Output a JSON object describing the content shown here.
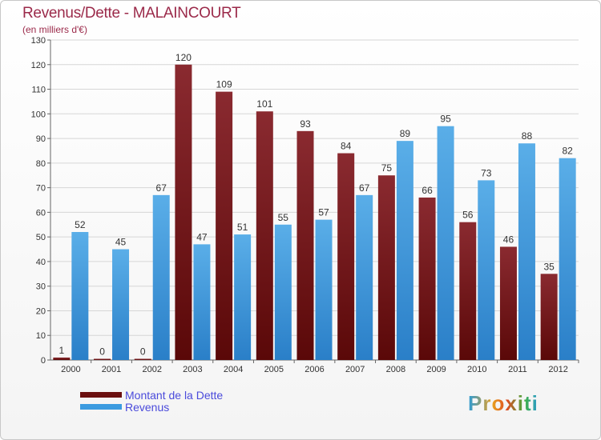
{
  "header": {
    "title": "Revenus/Dette - MALAINCOURT",
    "subtitle": "(en milliers d'€)"
  },
  "chart_data": {
    "type": "bar",
    "title": "Revenus/Dette - MALAINCOURT",
    "ylabel": "(en milliers d'€)",
    "xlabel": "",
    "categories": [
      "2000",
      "2001",
      "2002",
      "2003",
      "2004",
      "2005",
      "2006",
      "2007",
      "2008",
      "2009",
      "2010",
      "2011",
      "2012"
    ],
    "series": [
      {
        "name": "Montant de la Dette",
        "color": "#6b1010",
        "values": [
          1,
          0,
          0,
          120,
          109,
          101,
          93,
          84,
          75,
          66,
          56,
          46,
          35
        ]
      },
      {
        "name": "Revenus",
        "color": "#3b9be0",
        "values": [
          52,
          45,
          67,
          47,
          51,
          55,
          57,
          67,
          89,
          95,
          73,
          88,
          82
        ]
      }
    ],
    "ylim": [
      0,
      130
    ],
    "yticks": [
      0,
      10,
      20,
      30,
      40,
      50,
      60,
      70,
      80,
      90,
      100,
      110,
      120,
      130
    ],
    "grid": true,
    "legend_position": "bottom-left"
  },
  "legend": {
    "items": [
      {
        "label": "Montant de la Dette",
        "color": "#6b1010"
      },
      {
        "label": "Revenus",
        "color": "#3b9be0"
      }
    ]
  },
  "logo": {
    "text": "Proxiti"
  }
}
